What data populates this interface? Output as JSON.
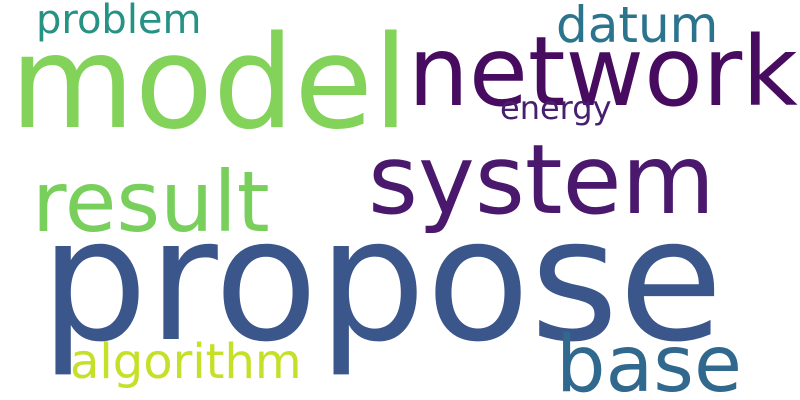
{
  "word_cloud": {
    "background": "#ffffff",
    "words": {
      "propose": {
        "text": "propose",
        "color": "#3b568b"
      },
      "model": {
        "text": "model",
        "color": "#83d25a"
      },
      "network": {
        "text": "network",
        "color": "#470b5f"
      },
      "system": {
        "text": "system",
        "color": "#4a186c"
      },
      "result": {
        "text": "result",
        "color": "#78cf5c"
      },
      "base": {
        "text": "base",
        "color": "#30688e"
      },
      "algorithm": {
        "text": "algorithm",
        "color": "#c6e02a"
      },
      "datum": {
        "text": "datum",
        "color": "#2c738e"
      },
      "problem": {
        "text": "problem",
        "color": "#259284"
      },
      "energy": {
        "text": "energy",
        "color": "#46206f"
      }
    }
  }
}
